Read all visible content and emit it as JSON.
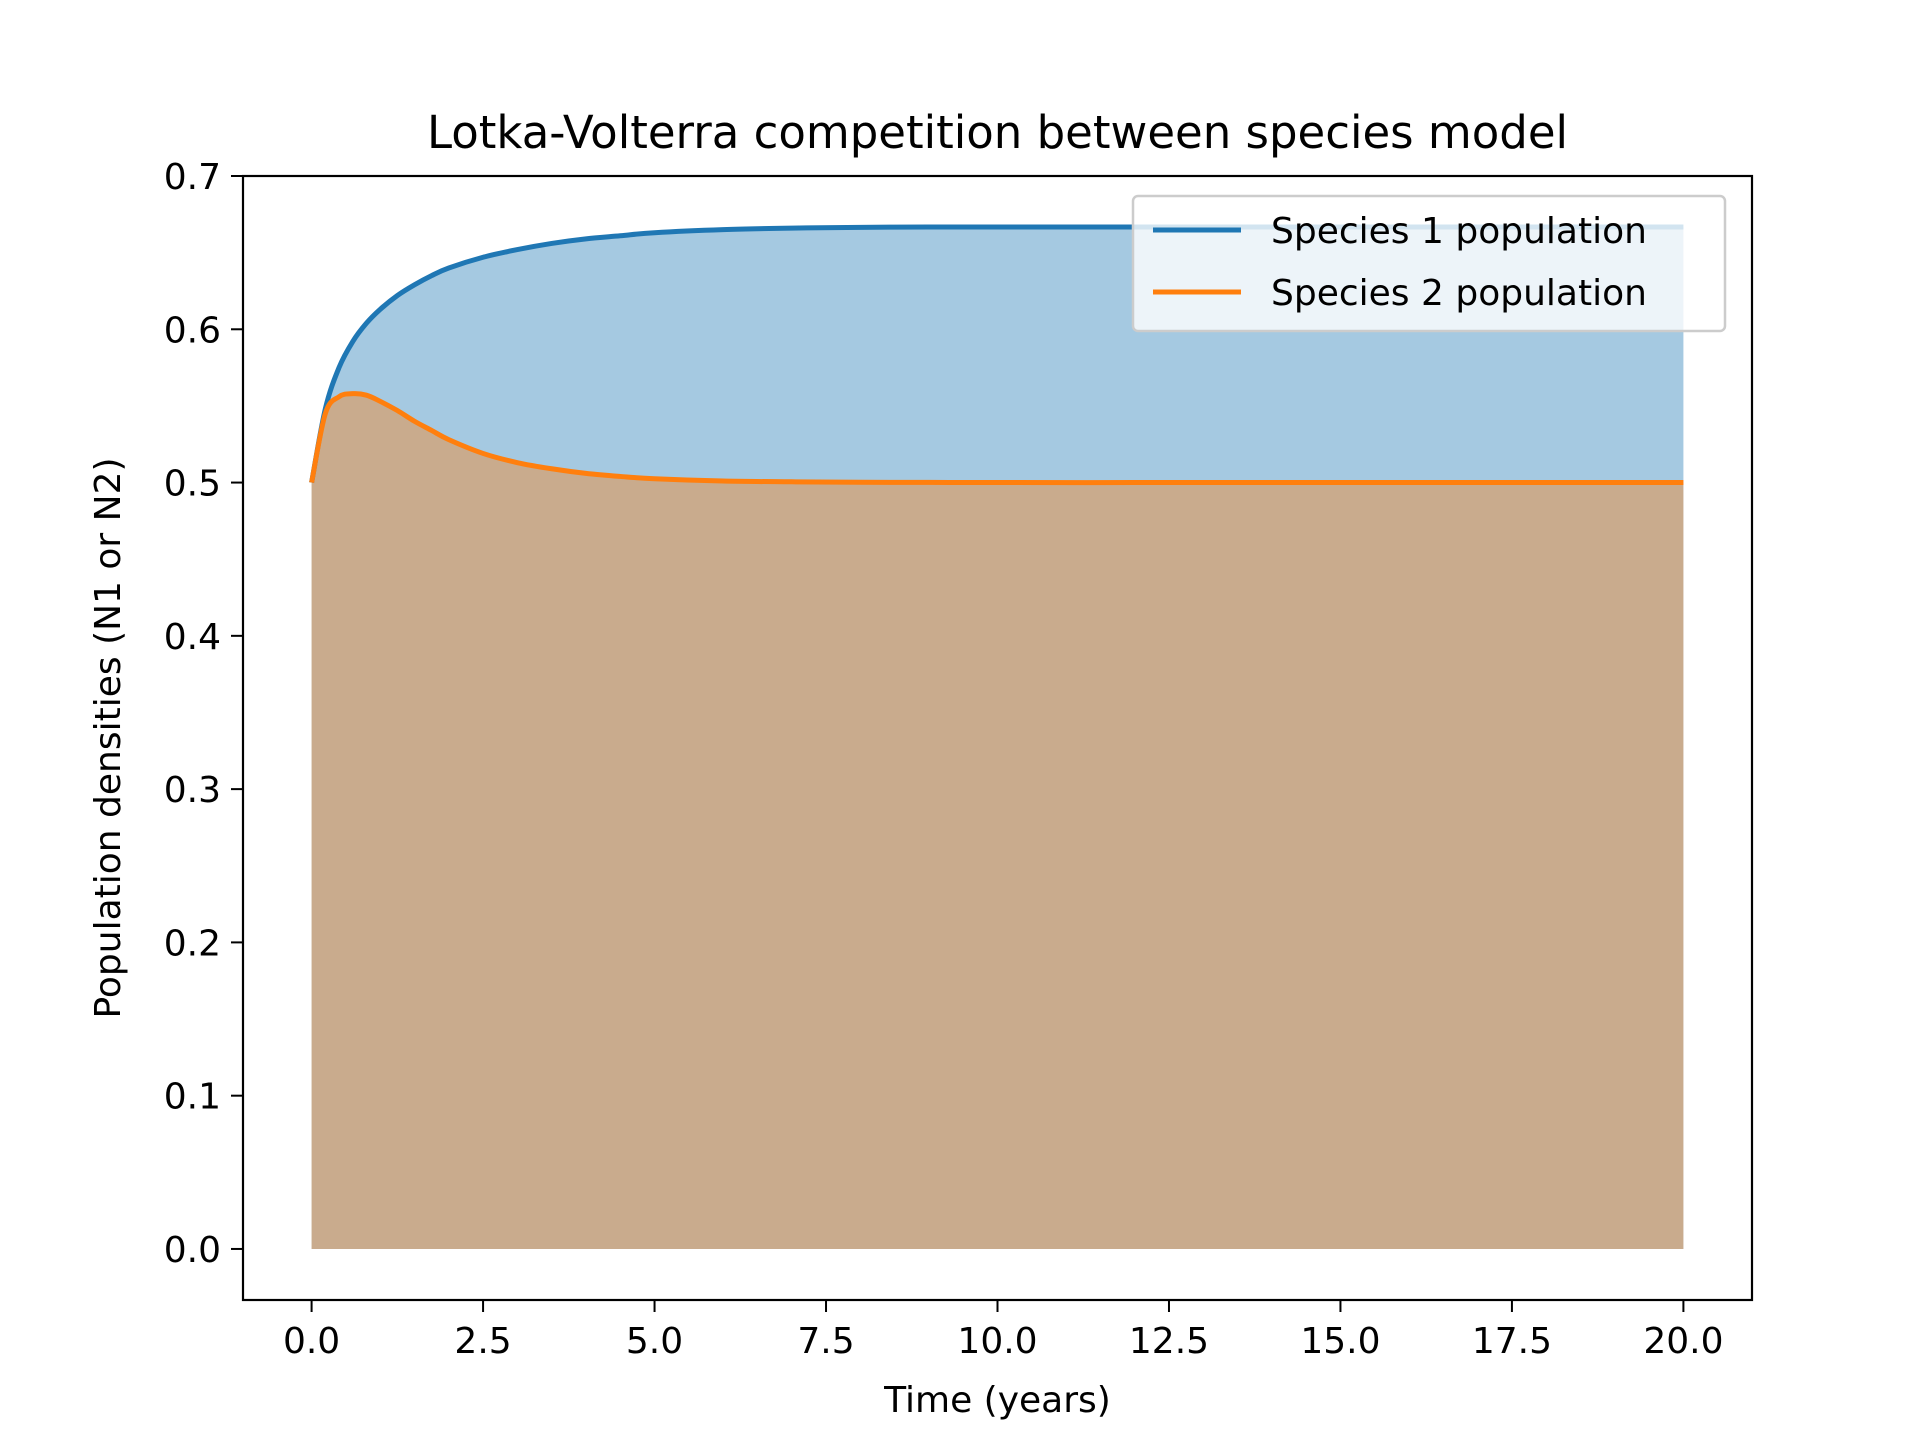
{
  "chart_data": {
    "type": "area",
    "title": "Lotka-Volterra competition between species model",
    "xlabel": "Time (years)",
    "ylabel": "Population densities (N1 or N2)",
    "xlim": [
      -1.0,
      21.0
    ],
    "ylim": [
      -0.0333,
      0.7
    ],
    "xticks": [
      0.0,
      2.5,
      5.0,
      7.5,
      10.0,
      12.5,
      15.0,
      17.5,
      20.0
    ],
    "xtick_labels": [
      "0.0",
      "2.5",
      "5.0",
      "7.5",
      "10.0",
      "12.5",
      "15.0",
      "17.5",
      "20.0"
    ],
    "yticks": [
      0.0,
      0.1,
      0.2,
      0.3,
      0.4,
      0.5,
      0.6,
      0.7
    ],
    "ytick_labels": [
      "0.0",
      "0.1",
      "0.2",
      "0.3",
      "0.4",
      "0.5",
      "0.6",
      "0.7"
    ],
    "grid": false,
    "legend_position": "top-right",
    "x": [
      0.0,
      0.2,
      0.4,
      0.6,
      0.8,
      1.0,
      1.25,
      1.5,
      1.75,
      2.0,
      2.5,
      3.0,
      3.5,
      4.0,
      4.5,
      5.0,
      6.0,
      7.0,
      8.0,
      9.0,
      10.0,
      12.0,
      14.0,
      16.0,
      18.0,
      20.0
    ],
    "series": [
      {
        "name": "Species 1 population",
        "color": "#1f77b4",
        "fill_color": "#1f77b4",
        "values": [
          0.5,
          0.548,
          0.575,
          0.592,
          0.604,
          0.613,
          0.622,
          0.629,
          0.635,
          0.64,
          0.647,
          0.652,
          0.656,
          0.659,
          0.661,
          0.663,
          0.665,
          0.666,
          0.6665,
          0.6667,
          0.6667,
          0.6667,
          0.6667,
          0.6667,
          0.6667,
          0.6667
        ]
      },
      {
        "name": "Species 2 population",
        "color": "#ff7f0e",
        "fill_color": "#ff7f0e",
        "values": [
          0.5,
          0.545,
          0.556,
          0.558,
          0.557,
          0.553,
          0.547,
          0.54,
          0.534,
          0.528,
          0.519,
          0.513,
          0.509,
          0.506,
          0.504,
          0.5025,
          0.501,
          0.5005,
          0.5002,
          0.5001,
          0.5,
          0.5,
          0.5,
          0.5,
          0.5,
          0.5
        ]
      }
    ]
  }
}
